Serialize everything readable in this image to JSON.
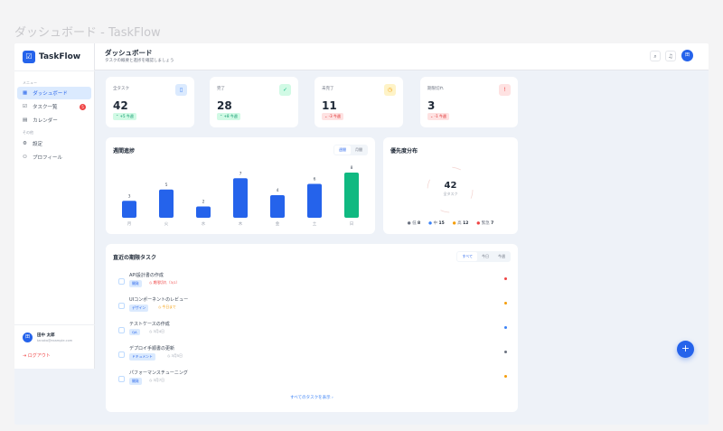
{
  "window_title": "ダッシュボード - TaskFlow",
  "brand": "TaskFlow",
  "sidebar": {
    "menu_label": "メニュー",
    "other_label": "その他",
    "items": [
      {
        "label": "ダッシュボード",
        "icon": "grid-icon",
        "active": true
      },
      {
        "label": "タスク一覧",
        "icon": "checklist-icon",
        "badge": "5"
      },
      {
        "label": "カレンダー",
        "icon": "calendar-icon"
      }
    ],
    "other_items": [
      {
        "label": "設定",
        "icon": "gear-icon"
      },
      {
        "label": "プロフィール",
        "icon": "user-icon"
      }
    ],
    "user": {
      "avatar": "田",
      "name": "田中 太郎",
      "email": "tanaka@example.com"
    },
    "logout": "ログアウト"
  },
  "header": {
    "title": "ダッシュボード",
    "subtitle": "タスクの概要と進捗を確認しましょう",
    "avatar": "田"
  },
  "stats": [
    {
      "label": "全タスク",
      "value": "42",
      "delta": "+5 今週",
      "trend": "up",
      "icon": "clipboard-icon",
      "color": "#3b82f6",
      "bg": "#dbeafe"
    },
    {
      "label": "完了",
      "value": "28",
      "delta": "+8 今週",
      "trend": "up",
      "icon": "check-circle-icon",
      "color": "#10b981",
      "bg": "#d1fae5"
    },
    {
      "label": "未完了",
      "value": "11",
      "delta": "-3 今週",
      "trend": "down",
      "icon": "clock-icon",
      "color": "#f59e0b",
      "bg": "#fef3c7"
    },
    {
      "label": "期限切れ",
      "value": "3",
      "delta": "-1 今週",
      "trend": "down",
      "icon": "alert-icon",
      "color": "#ef4444",
      "bg": "#fee2e2"
    }
  ],
  "weekly": {
    "title": "週間進捗",
    "toggle": [
      "週間",
      "月間"
    ],
    "active": "週間"
  },
  "chart_data": {
    "type": "bar",
    "categories": [
      "月",
      "火",
      "水",
      "木",
      "金",
      "土",
      "日"
    ],
    "values": [
      3,
      5,
      2,
      7,
      4,
      6,
      8
    ],
    "highlight_color": "#10b981",
    "bar_color": "#2563eb"
  },
  "priority": {
    "title": "優先度分布",
    "total": "42",
    "total_label": "全タスク",
    "legend": [
      {
        "label": "低",
        "value": 8,
        "color": "#6b7280"
      },
      {
        "label": "中",
        "value": 15,
        "color": "#3b82f6"
      },
      {
        "label": "高",
        "value": 12,
        "color": "#f59e0b"
      },
      {
        "label": "緊急",
        "value": 7,
        "color": "#ef4444"
      }
    ]
  },
  "tasks": {
    "title": "直近の期限タスク",
    "filters": [
      "すべて",
      "今日",
      "今週"
    ],
    "active": "すべて",
    "show_all": "すべてのタスクを表示 ›",
    "items": [
      {
        "title": "API設計書の作成",
        "tag": "開発",
        "due": "期限切れ（3/1）",
        "due_color": "#ef4444",
        "priority_color": "#ef4444"
      },
      {
        "title": "UIコンポーネントのレビュー",
        "tag": "デザイン",
        "due": "今日まで",
        "due_color": "#f59e0b",
        "priority_color": "#f59e0b"
      },
      {
        "title": "テストケースの作成",
        "tag": "QA",
        "due": "3月4日",
        "due_color": "#9ca3af",
        "priority_color": "#3b82f6"
      },
      {
        "title": "デプロイ手順書の更新",
        "tag": "ドキュメント",
        "due": "3月5日",
        "due_color": "#9ca3af",
        "priority_color": "#6b7280"
      },
      {
        "title": "パフォーマンスチューニング",
        "tag": "開発",
        "due": "3月7日",
        "due_color": "#9ca3af",
        "priority_color": "#f59e0b"
      }
    ]
  },
  "fab": "+"
}
